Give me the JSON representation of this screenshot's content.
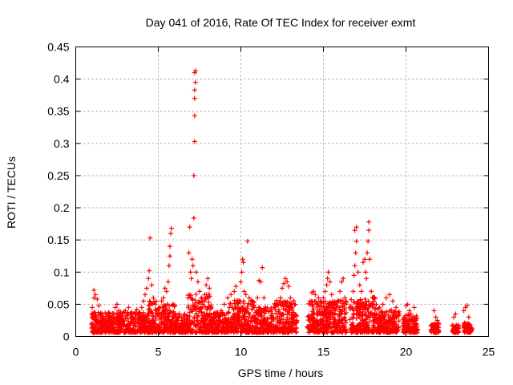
{
  "chart_data": {
    "type": "scatter",
    "title": "Day 041 of 2016, Rate Of TEC Index for receiver exmt",
    "xlabel": "GPS time / hours",
    "ylabel": "ROTI / TECUs",
    "xlim": [
      0,
      25
    ],
    "ylim": [
      0,
      0.45
    ],
    "xticks": [
      "0",
      "5",
      "10",
      "15",
      "20",
      "25"
    ],
    "yticks": [
      "0",
      "0.05",
      "0.1",
      "0.15",
      "0.2",
      "0.25",
      "0.3",
      "0.35",
      "0.4",
      "0.45"
    ],
    "grid": true,
    "marker": "+",
    "color": "#ff0000",
    "series": [
      {
        "name": "ROTI",
        "points": [
          [
            1.0,
            0.02
          ],
          [
            1.0,
            0.045
          ],
          [
            1.1,
            0.06
          ],
          [
            1.1,
            0.072
          ],
          [
            1.2,
            0.065
          ],
          [
            1.3,
            0.058
          ],
          [
            1.4,
            0.048
          ],
          [
            1.5,
            0.03
          ],
          [
            1.6,
            0.02
          ],
          [
            1.7,
            0.025
          ],
          [
            1.8,
            0.015
          ],
          [
            1.9,
            0.022
          ],
          [
            2.0,
            0.018
          ],
          [
            2.1,
            0.028
          ],
          [
            2.2,
            0.02
          ],
          [
            2.3,
            0.035
          ],
          [
            2.4,
            0.045
          ],
          [
            2.5,
            0.05
          ],
          [
            2.6,
            0.04
          ],
          [
            2.7,
            0.03
          ],
          [
            2.8,
            0.025
          ],
          [
            2.9,
            0.038
          ],
          [
            3.0,
            0.04
          ],
          [
            3.1,
            0.032
          ],
          [
            3.2,
            0.045
          ],
          [
            3.3,
            0.035
          ],
          [
            3.4,
            0.03
          ],
          [
            3.5,
            0.028
          ],
          [
            3.6,
            0.038
          ],
          [
            3.7,
            0.042
          ],
          [
            3.8,
            0.035
          ],
          [
            3.9,
            0.03
          ],
          [
            4.0,
            0.045
          ],
          [
            4.1,
            0.055
          ],
          [
            4.2,
            0.065
          ],
          [
            4.3,
            0.075
          ],
          [
            4.4,
            0.09
          ],
          [
            4.45,
            0.102
          ],
          [
            4.5,
            0.153
          ],
          [
            4.6,
            0.08
          ],
          [
            4.7,
            0.06
          ],
          [
            4.8,
            0.05
          ],
          [
            4.9,
            0.04
          ],
          [
            5.0,
            0.035
          ],
          [
            5.1,
            0.045
          ],
          [
            5.2,
            0.055
          ],
          [
            5.3,
            0.06
          ],
          [
            5.4,
            0.075
          ],
          [
            5.5,
            0.07
          ],
          [
            5.6,
            0.085
          ],
          [
            5.65,
            0.11
          ],
          [
            5.7,
            0.14
          ],
          [
            5.75,
            0.16
          ],
          [
            5.8,
            0.168
          ],
          [
            5.7,
            0.125
          ],
          [
            5.9,
            0.05
          ],
          [
            6.0,
            0.03
          ],
          [
            6.2,
            0.025
          ],
          [
            6.4,
            0.03
          ],
          [
            6.6,
            0.035
          ],
          [
            6.8,
            0.06
          ],
          [
            6.85,
            0.13
          ],
          [
            6.9,
            0.17
          ],
          [
            6.95,
            0.1
          ],
          [
            7.0,
            0.09
          ],
          [
            7.05,
            0.12
          ],
          [
            7.1,
            0.11
          ],
          [
            7.15,
            0.184
          ],
          [
            7.15,
            0.25
          ],
          [
            7.2,
            0.303
          ],
          [
            7.2,
            0.343
          ],
          [
            7.2,
            0.37
          ],
          [
            7.2,
            0.383
          ],
          [
            7.25,
            0.395
          ],
          [
            7.2,
            0.41
          ],
          [
            7.25,
            0.413
          ],
          [
            7.3,
            0.1
          ],
          [
            7.4,
            0.085
          ],
          [
            7.5,
            0.07
          ],
          [
            7.6,
            0.06
          ],
          [
            7.7,
            0.05
          ],
          [
            7.8,
            0.055
          ],
          [
            7.9,
            0.08
          ],
          [
            8.0,
            0.09
          ],
          [
            8.1,
            0.075
          ],
          [
            8.2,
            0.045
          ],
          [
            8.4,
            0.03
          ],
          [
            8.6,
            0.035
          ],
          [
            8.8,
            0.04
          ],
          [
            9.0,
            0.05
          ],
          [
            9.2,
            0.06
          ],
          [
            9.4,
            0.065
          ],
          [
            9.6,
            0.07
          ],
          [
            9.7,
            0.078
          ],
          [
            9.8,
            0.055
          ],
          [
            10.0,
            0.085
          ],
          [
            10.05,
            0.1
          ],
          [
            10.1,
            0.12
          ],
          [
            10.15,
            0.115
          ],
          [
            10.2,
            0.07
          ],
          [
            10.3,
            0.065
          ],
          [
            10.4,
            0.148
          ],
          [
            10.5,
            0.06
          ],
          [
            10.6,
            0.05
          ],
          [
            10.8,
            0.045
          ],
          [
            11.0,
            0.06
          ],
          [
            11.1,
            0.087
          ],
          [
            11.2,
            0.085
          ],
          [
            11.3,
            0.107
          ],
          [
            11.4,
            0.06
          ],
          [
            11.5,
            0.045
          ],
          [
            11.7,
            0.04
          ],
          [
            11.9,
            0.035
          ],
          [
            12.0,
            0.045
          ],
          [
            12.2,
            0.05
          ],
          [
            12.4,
            0.06
          ],
          [
            12.5,
            0.075
          ],
          [
            12.6,
            0.082
          ],
          [
            12.7,
            0.09
          ],
          [
            12.8,
            0.085
          ],
          [
            12.9,
            0.078
          ],
          [
            13.0,
            0.06
          ],
          [
            13.1,
            0.04
          ],
          [
            13.2,
            0.03
          ],
          [
            13.3,
            0.02
          ],
          [
            14.2,
            0.05
          ],
          [
            14.3,
            0.068
          ],
          [
            14.4,
            0.07
          ],
          [
            14.5,
            0.065
          ],
          [
            14.6,
            0.05
          ],
          [
            14.7,
            0.06
          ],
          [
            14.8,
            0.055
          ],
          [
            15.0,
            0.06
          ],
          [
            15.1,
            0.07
          ],
          [
            15.2,
            0.08
          ],
          [
            15.25,
            0.09
          ],
          [
            15.3,
            0.1
          ],
          [
            15.4,
            0.085
          ],
          [
            15.5,
            0.065
          ],
          [
            15.6,
            0.05
          ],
          [
            15.8,
            0.045
          ],
          [
            16.0,
            0.07
          ],
          [
            16.1,
            0.085
          ],
          [
            16.2,
            0.09
          ],
          [
            16.3,
            0.06
          ],
          [
            16.8,
            0.07
          ],
          [
            16.85,
            0.095
          ],
          [
            16.9,
            0.11
          ],
          [
            16.95,
            0.13
          ],
          [
            17.0,
            0.148
          ],
          [
            16.9,
            0.165
          ],
          [
            17.0,
            0.17
          ],
          [
            17.1,
            0.1
          ],
          [
            17.2,
            0.08
          ],
          [
            17.3,
            0.07
          ],
          [
            17.4,
            0.115
          ],
          [
            17.5,
            0.12
          ],
          [
            17.55,
            0.1
          ],
          [
            17.6,
            0.09
          ],
          [
            17.65,
            0.13
          ],
          [
            17.7,
            0.148
          ],
          [
            17.75,
            0.165
          ],
          [
            17.75,
            0.178
          ],
          [
            17.8,
            0.12
          ],
          [
            17.9,
            0.07
          ],
          [
            18.0,
            0.06
          ],
          [
            18.2,
            0.05
          ],
          [
            18.4,
            0.045
          ],
          [
            18.6,
            0.05
          ],
          [
            18.8,
            0.06
          ],
          [
            19.0,
            0.065
          ],
          [
            19.2,
            0.055
          ],
          [
            19.4,
            0.045
          ],
          [
            19.6,
            0.035
          ],
          [
            20.0,
            0.048
          ],
          [
            20.1,
            0.05
          ],
          [
            20.2,
            0.04
          ],
          [
            20.3,
            0.035
          ],
          [
            20.5,
            0.045
          ],
          [
            20.6,
            0.025
          ],
          [
            21.7,
            0.04
          ],
          [
            21.8,
            0.03
          ],
          [
            21.9,
            0.025
          ],
          [
            22.9,
            0.03
          ],
          [
            23.0,
            0.035
          ],
          [
            23.5,
            0.04
          ],
          [
            23.6,
            0.045
          ],
          [
            23.7,
            0.048
          ],
          [
            23.8,
            0.03
          ]
        ]
      }
    ]
  }
}
